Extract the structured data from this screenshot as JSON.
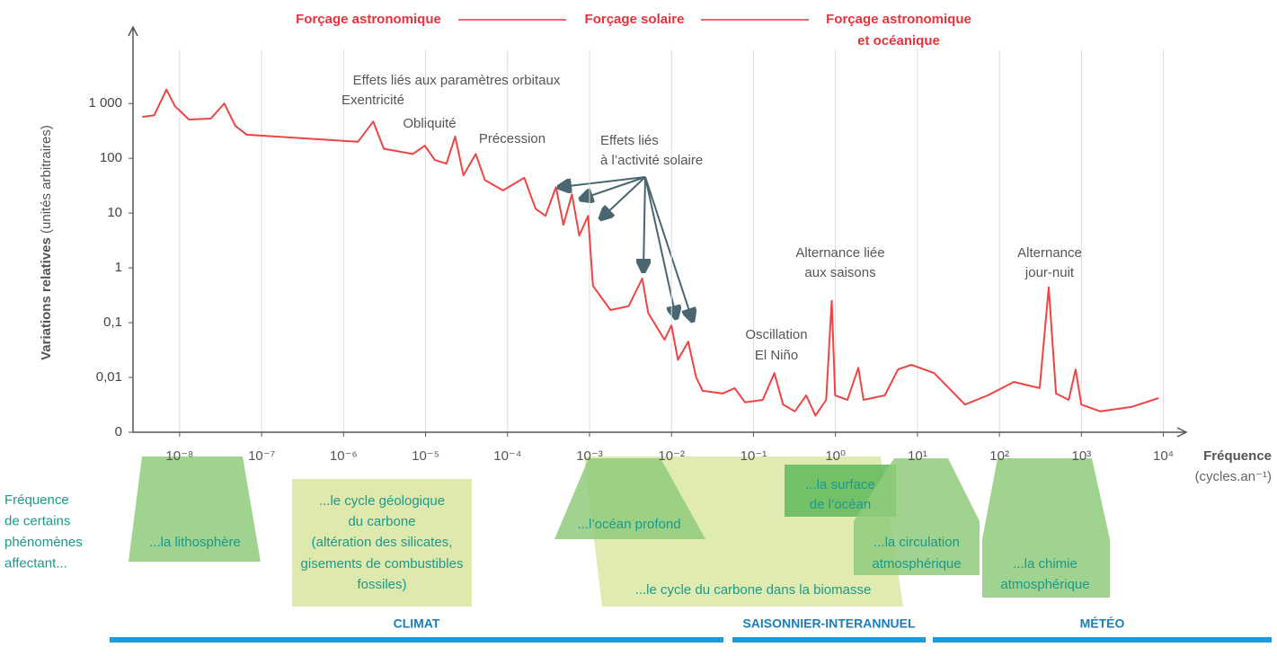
{
  "header": {
    "left": "Forçage astronomique",
    "middle": "Forçage solaire",
    "right": [
      "Forçage astronomique",
      "et océanique"
    ]
  },
  "chart_data": {
    "type": "line",
    "ylabel": [
      "Variations relatives",
      "(unités arbitraires)"
    ],
    "xlabel": [
      "Fréquence",
      "(cycles.an⁻¹)"
    ],
    "log_x": true,
    "log_y": true,
    "grid": "x",
    "color": "#ef4444",
    "x": [
      3.5e-09,
      4.9e-09,
      6.9e-09,
      8.8e-09,
      1.3e-08,
      2.4e-08,
      3.5e-08,
      4.8e-08,
      6.6e-08,
      1.5e-06,
      2.3e-06,
      3.1e-06,
      7e-06,
      9.8e-06,
      1.3e-05,
      1.8e-05,
      2.3e-05,
      2.9e-05,
      4.1e-05,
      5.3e-05,
      8.8e-05,
      0.00016,
      0.00022,
      0.00029,
      0.00039,
      0.00048,
      0.00061,
      0.00075,
      0.00096,
      0.0011,
      0.0018,
      0.003,
      0.0044,
      0.0052,
      0.0082,
      0.01,
      0.012,
      0.016,
      0.02,
      0.024,
      0.042,
      0.059,
      0.079,
      0.13,
      0.18,
      0.23,
      0.32,
      0.44,
      0.57,
      0.77,
      0.9,
      0.99,
      1.4,
      1.9,
      2.2,
      4.0,
      5.8,
      8.4,
      16,
      38,
      72,
      150,
      310,
      400,
      490,
      700,
      850,
      1000,
      1700,
      4100,
      8700
    ],
    "values": [
      570,
      610,
      1800,
      890,
      510,
      530,
      1000,
      390,
      270,
      200,
      470,
      150,
      120,
      170,
      93,
      80,
      250,
      49,
      120,
      40,
      26,
      44,
      12,
      8.9,
      30,
      6.1,
      22,
      3.9,
      8.9,
      0.47,
      0.17,
      0.2,
      0.64,
      0.15,
      0.049,
      0.089,
      0.021,
      0.045,
      0.01,
      0.0057,
      0.0051,
      0.0064,
      0.0035,
      0.0039,
      0.012,
      0.0032,
      0.0024,
      0.0047,
      0.002,
      0.0039,
      0.25,
      0.0047,
      0.0039,
      0.015,
      0.0039,
      0.0047,
      0.014,
      0.017,
      0.012,
      0.0032,
      0.0047,
      0.0083,
      0.0064,
      0.44,
      0.0051,
      0.0039,
      0.014,
      0.0032,
      0.0024,
      0.0029,
      0.0042
    ],
    "xlim": [
      2.7e-09,
      19000
    ],
    "ylim": [
      0.001,
      25000
    ],
    "xticks": [
      {
        "value": 1e-08,
        "label": "10⁻⁸"
      },
      {
        "value": 1e-07,
        "label": "10⁻⁷"
      },
      {
        "value": 1e-06,
        "label": "10⁻⁶"
      },
      {
        "value": 1e-05,
        "label": "10⁻⁵"
      },
      {
        "value": 0.0001,
        "label": "10⁻⁴"
      },
      {
        "value": 0.001,
        "label": "10⁻³"
      },
      {
        "value": 0.01,
        "label": "10⁻²"
      },
      {
        "value": 0.1,
        "label": "10⁻¹"
      },
      {
        "value": 1,
        "label": "10⁰"
      },
      {
        "value": 10,
        "label": "10¹"
      },
      {
        "value": 100,
        "label": "10²"
      },
      {
        "value": 1000,
        "label": "10³"
      },
      {
        "value": 10000,
        "label": "10⁴"
      }
    ],
    "yticks": [
      {
        "value": 0.001,
        "label": "0"
      },
      {
        "value": 0.01,
        "label": "0,01"
      },
      {
        "value": 0.1,
        "label": "0,1"
      },
      1,
      10,
      100,
      {
        "value": 1000,
        "label": "1 000"
      }
    ],
    "annotations": [
      {
        "lines": [
          "Effets liés aux paramètres orbitaux"
        ]
      },
      {
        "lines": [
          "Exentricité"
        ]
      },
      {
        "lines": [
          "Obliquité"
        ]
      },
      {
        "lines": [
          "Précession"
        ]
      },
      {
        "lines": [
          "Effets liés",
          "à l’activité solaire"
        ]
      },
      {
        "lines": [
          "Alternance liée",
          "aux saisons"
        ]
      },
      {
        "lines": [
          "Oscillation",
          "El Niño"
        ]
      },
      {
        "lines": [
          "Alternance",
          "jour-nuit"
        ]
      }
    ]
  },
  "phenomena": {
    "intro": [
      "Fréquence",
      "de certains",
      "phénomènes",
      "affectant..."
    ],
    "boxes": [
      {
        "lines": [
          "...la lithosphère"
        ]
      },
      {
        "lines": [
          "...le cycle géologique",
          "du carbone",
          "(altération des silicates,",
          "gisements de combustibles",
          "fossiles)"
        ]
      },
      {
        "lines": [
          "...le cycle du carbone dans la biomasse"
        ]
      },
      {
        "lines": [
          "...l’océan profond"
        ]
      },
      {
        "lines": [
          "...la surface",
          "de l’océan"
        ]
      },
      {
        "lines": [
          "...la circulation",
          "atmosphérique"
        ]
      },
      {
        "lines": [
          "...la chimie",
          "atmosphérique"
        ]
      }
    ]
  },
  "scales": [
    "CLIMAT",
    "SAISONNIER-INTERANNUEL",
    "MÉTÉO"
  ]
}
